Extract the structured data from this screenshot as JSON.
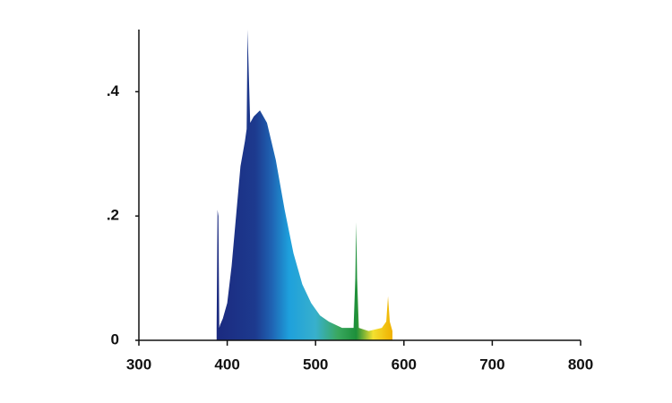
{
  "chart_data": {
    "type": "area",
    "x": [
      388,
      389,
      390,
      391,
      392,
      395,
      400,
      405,
      410,
      415,
      420,
      422,
      423,
      424,
      426,
      430,
      437,
      445,
      455,
      465,
      475,
      485,
      495,
      505,
      515,
      530,
      543,
      545,
      546,
      547,
      549,
      560,
      575,
      580,
      582,
      584,
      587
    ],
    "values": [
      0.02,
      0.21,
      0.2,
      0.02,
      0.025,
      0.035,
      0.06,
      0.12,
      0.2,
      0.28,
      0.32,
      0.34,
      0.5,
      0.45,
      0.35,
      0.36,
      0.37,
      0.35,
      0.29,
      0.21,
      0.14,
      0.09,
      0.06,
      0.04,
      0.03,
      0.02,
      0.02,
      0.1,
      0.19,
      0.1,
      0.02,
      0.015,
      0.02,
      0.03,
      0.071,
      0.03,
      0.015
    ],
    "color_stops": [
      {
        "x": 388,
        "color": "#1b2a80"
      },
      {
        "x": 432,
        "color": "#1d3a8e"
      },
      {
        "x": 450,
        "color": "#1f62b2"
      },
      {
        "x": 470,
        "color": "#1ea0dc"
      },
      {
        "x": 500,
        "color": "#38b0cc"
      },
      {
        "x": 525,
        "color": "#3aa860"
      },
      {
        "x": 546,
        "color": "#1d8f3a"
      },
      {
        "x": 565,
        "color": "#f3e030"
      },
      {
        "x": 587,
        "color": "#f0b000"
      }
    ],
    "xlim": [
      300,
      800
    ],
    "xticks": [
      300,
      400,
      500,
      600,
      700,
      800
    ],
    "ylim": [
      0,
      0.5
    ],
    "yticks": [
      0,
      {
        "value": 0.2,
        "label": ".2"
      },
      {
        "value": 0.4,
        "label": ".4"
      }
    ]
  }
}
